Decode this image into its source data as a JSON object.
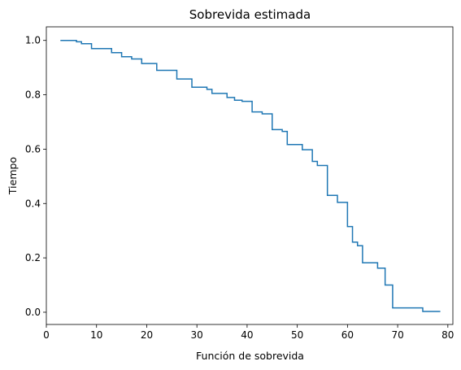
{
  "chart_data": {
    "type": "line",
    "step": "post",
    "title": "Sobrevida estimada",
    "xlabel": "Función de sobrevida",
    "ylabel": "Tiempo",
    "xlim": [
      0.0,
      81.0
    ],
    "ylim": [
      -0.045,
      1.05
    ],
    "xticks": [
      0,
      10,
      20,
      30,
      40,
      50,
      60,
      70,
      80
    ],
    "yticks": [
      0.0,
      0.2,
      0.4,
      0.6,
      0.8,
      1.0
    ],
    "xtick_labels": [
      "0",
      "10",
      "20",
      "30",
      "40",
      "50",
      "60",
      "70",
      "80"
    ],
    "ytick_labels": [
      "0.0",
      "0.2",
      "0.4",
      "0.6",
      "0.8",
      "1.0"
    ],
    "grid": false,
    "line_color": "#1f77b4",
    "series": [
      {
        "x": [
          2.8,
          6.0,
          7.0,
          9.0,
          13.0,
          15.0,
          17.0,
          19.0,
          22.0,
          26.0,
          29.0,
          32.0,
          33.0,
          36.0,
          37.5,
          39.0,
          41.0,
          43.0,
          45.0,
          47.0,
          48.0,
          51.0,
          53.0,
          54.0,
          56.0,
          58.0,
          60.0,
          61.0,
          62.0,
          63.0,
          66.0,
          67.5,
          69.0,
          75.0,
          78.5
        ],
        "y": [
          1.0,
          0.995,
          0.988,
          0.97,
          0.955,
          0.94,
          0.932,
          0.915,
          0.89,
          0.858,
          0.828,
          0.82,
          0.805,
          0.79,
          0.78,
          0.776,
          0.737,
          0.73,
          0.672,
          0.665,
          0.617,
          0.598,
          0.555,
          0.54,
          0.43,
          0.404,
          0.315,
          0.258,
          0.245,
          0.182,
          0.162,
          0.1,
          0.016,
          0.003,
          0.003
        ]
      }
    ]
  }
}
